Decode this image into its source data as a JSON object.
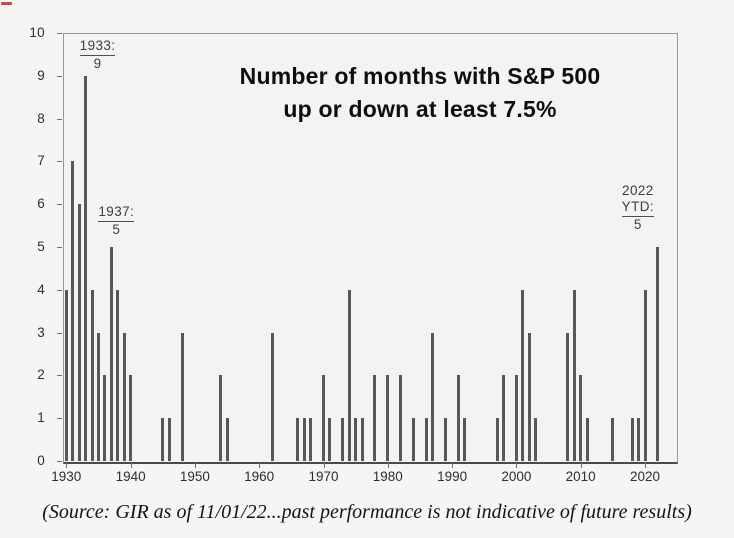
{
  "chart_data": {
    "type": "bar",
    "title": "Number of months with S&P 500 up or down at least 7.5%",
    "title_lines": [
      "Number of months with S&P 500",
      "up or down at least 7.5%"
    ],
    "xlabel": "",
    "ylabel": "",
    "ylim": [
      0,
      10
    ],
    "yticks": [
      0,
      1,
      2,
      3,
      4,
      5,
      6,
      7,
      8,
      9,
      10
    ],
    "xticks": [
      1930,
      1940,
      1950,
      1960,
      1970,
      1980,
      1990,
      2000,
      2010,
      2020
    ],
    "grid": false,
    "legend": false,
    "bar_color": "#585858",
    "series": [
      {
        "year": 1930,
        "value": 4
      },
      {
        "year": 1931,
        "value": 7
      },
      {
        "year": 1932,
        "value": 6
      },
      {
        "year": 1933,
        "value": 9
      },
      {
        "year": 1934,
        "value": 4
      },
      {
        "year": 1935,
        "value": 3
      },
      {
        "year": 1936,
        "value": 2
      },
      {
        "year": 1937,
        "value": 5
      },
      {
        "year": 1938,
        "value": 4
      },
      {
        "year": 1939,
        "value": 3
      },
      {
        "year": 1940,
        "value": 2
      },
      {
        "year": 1945,
        "value": 1
      },
      {
        "year": 1946,
        "value": 1
      },
      {
        "year": 1948,
        "value": 3
      },
      {
        "year": 1954,
        "value": 2
      },
      {
        "year": 1955,
        "value": 1
      },
      {
        "year": 1962,
        "value": 3
      },
      {
        "year": 1966,
        "value": 1
      },
      {
        "year": 1967,
        "value": 1
      },
      {
        "year": 1968,
        "value": 1
      },
      {
        "year": 1970,
        "value": 2
      },
      {
        "year": 1971,
        "value": 1
      },
      {
        "year": 1973,
        "value": 1
      },
      {
        "year": 1974,
        "value": 4
      },
      {
        "year": 1975,
        "value": 1
      },
      {
        "year": 1976,
        "value": 1
      },
      {
        "year": 1978,
        "value": 2
      },
      {
        "year": 1980,
        "value": 2
      },
      {
        "year": 1982,
        "value": 2
      },
      {
        "year": 1984,
        "value": 1
      },
      {
        "year": 1986,
        "value": 1
      },
      {
        "year": 1987,
        "value": 3
      },
      {
        "year": 1989,
        "value": 1
      },
      {
        "year": 1991,
        "value": 2
      },
      {
        "year": 1992,
        "value": 1
      },
      {
        "year": 1997,
        "value": 1
      },
      {
        "year": 1998,
        "value": 2
      },
      {
        "year": 2000,
        "value": 2
      },
      {
        "year": 2001,
        "value": 4
      },
      {
        "year": 2002,
        "value": 3
      },
      {
        "year": 2003,
        "value": 1
      },
      {
        "year": 2008,
        "value": 3
      },
      {
        "year": 2009,
        "value": 4
      },
      {
        "year": 2010,
        "value": 2
      },
      {
        "year": 2011,
        "value": 1
      },
      {
        "year": 2015,
        "value": 1
      },
      {
        "year": 2018,
        "value": 1
      },
      {
        "year": 2019,
        "value": 1
      },
      {
        "year": 2020,
        "value": 4
      },
      {
        "year": 2022,
        "value": 5
      }
    ],
    "annotations": [
      {
        "year": 1933,
        "label_lines": [
          "1933:"
        ],
        "value_label": "9"
      },
      {
        "year": 1937,
        "label_lines": [
          "1937:"
        ],
        "value_label": "5"
      },
      {
        "year": 2022,
        "label_lines": [
          "2022",
          "YTD:"
        ],
        "value_label": "5"
      }
    ]
  },
  "source_note": "(Source: GIR as of 11/01/22...past performance is not indicative of future results)"
}
